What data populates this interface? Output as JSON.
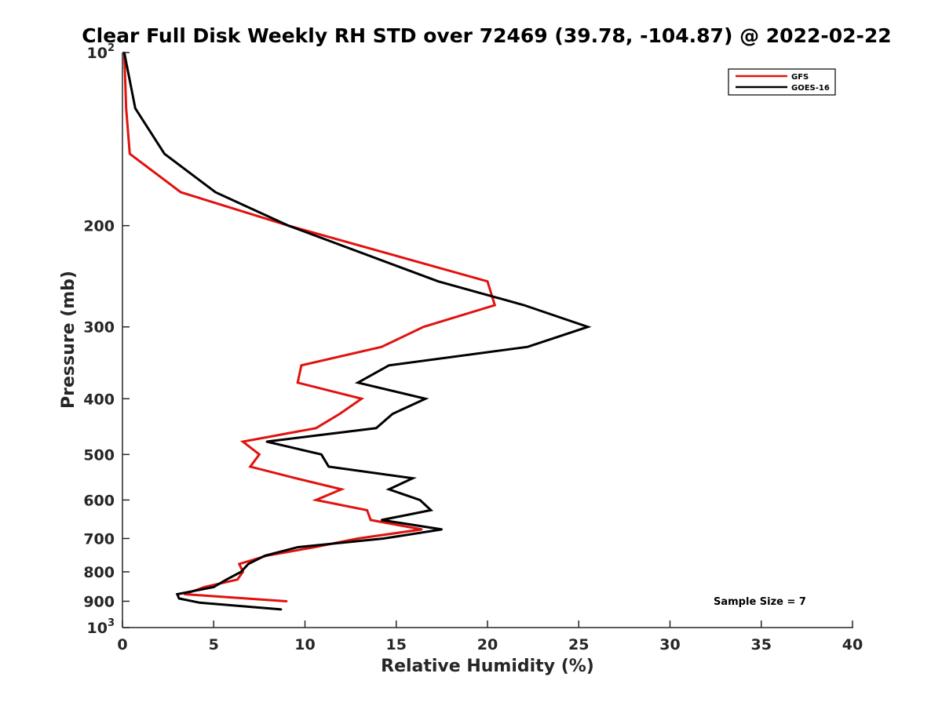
{
  "chart_data": {
    "type": "line",
    "title": "Clear Full Disk Weekly RH STD over 72469 (39.78, -104.87) @ 2022-02-22",
    "xlabel": "Relative Humidity (%)",
    "ylabel": "Pressure (mb)",
    "xlim": [
      0,
      40
    ],
    "ylim": [
      100,
      1000
    ],
    "y_scale": "log",
    "y_reversed": true,
    "grid": false,
    "legend_position": "top-right",
    "x_ticks": [
      "0",
      "5",
      "10",
      "15",
      "20",
      "25",
      "30",
      "35",
      "40"
    ],
    "y_ticks": [
      {
        "value": 100,
        "base": "10",
        "exp": "2"
      },
      {
        "value": 200,
        "label": "200"
      },
      {
        "value": 300,
        "label": "300"
      },
      {
        "value": 400,
        "label": "400"
      },
      {
        "value": 500,
        "label": "500"
      },
      {
        "value": 600,
        "label": "600"
      },
      {
        "value": 700,
        "label": "700"
      },
      {
        "value": 800,
        "label": "800"
      },
      {
        "value": 900,
        "label": "900"
      },
      {
        "value": 1000,
        "base": "10",
        "exp": "3"
      }
    ],
    "annotation": "Sample Size = 7",
    "series": [
      {
        "name": "GFS",
        "color": "#e0120f",
        "points": [
          [
            0.1,
            100
          ],
          [
            0.2,
            125
          ],
          [
            0.4,
            150
          ],
          [
            3.2,
            175
          ],
          [
            9.1,
            200
          ],
          [
            20,
            250
          ],
          [
            20.4,
            275
          ],
          [
            16.5,
            300
          ],
          [
            14.2,
            325
          ],
          [
            9.8,
            350
          ],
          [
            9.6,
            375
          ],
          [
            13.1,
            400
          ],
          [
            11.9,
            425
          ],
          [
            10.6,
            450
          ],
          [
            6.6,
            475
          ],
          [
            7.5,
            500
          ],
          [
            7.0,
            525
          ],
          [
            9.5,
            550
          ],
          [
            12.0,
            575
          ],
          [
            10.6,
            600
          ],
          [
            13.4,
            625
          ],
          [
            13.6,
            650
          ],
          [
            16.4,
            675
          ],
          [
            12.9,
            700
          ],
          [
            10.5,
            725
          ],
          [
            7.9,
            750
          ],
          [
            6.4,
            775
          ],
          [
            6.6,
            800
          ],
          [
            6.3,
            825
          ],
          [
            4.5,
            850
          ],
          [
            3.4,
            875
          ],
          [
            9.0,
            900
          ]
        ]
      },
      {
        "name": "GOES-16",
        "color": "#000000",
        "points": [
          [
            0.1,
            100
          ],
          [
            0.7,
            125
          ],
          [
            2.3,
            150
          ],
          [
            5.1,
            175
          ],
          [
            9.1,
            200
          ],
          [
            17.3,
            250
          ],
          [
            22.0,
            275
          ],
          [
            25.5,
            300
          ],
          [
            22.2,
            325
          ],
          [
            14.6,
            350
          ],
          [
            12.9,
            375
          ],
          [
            16.6,
            400
          ],
          [
            14.8,
            425
          ],
          [
            13.9,
            450
          ],
          [
            7.9,
            475
          ],
          [
            10.9,
            500
          ],
          [
            11.3,
            525
          ],
          [
            15.9,
            550
          ],
          [
            14.6,
            575
          ],
          [
            16.3,
            600
          ],
          [
            16.9,
            625
          ],
          [
            14.2,
            650
          ],
          [
            17.5,
            675
          ],
          [
            14.3,
            700
          ],
          [
            9.6,
            725
          ],
          [
            7.8,
            750
          ],
          [
            6.9,
            775
          ],
          [
            6.5,
            800
          ],
          [
            5.7,
            825
          ],
          [
            5.0,
            850
          ],
          [
            3.0,
            875
          ],
          [
            3.1,
            890
          ],
          [
            4.2,
            905
          ],
          [
            8.7,
            930
          ]
        ]
      }
    ]
  }
}
